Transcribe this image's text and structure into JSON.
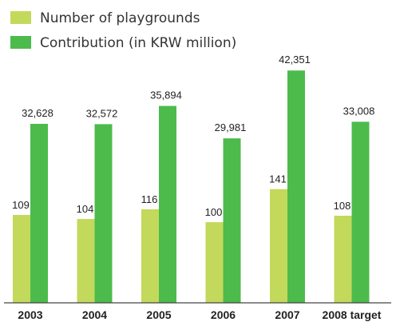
{
  "chart_data": {
    "type": "bar",
    "categories": [
      "2003",
      "2004",
      "2005",
      "2006",
      "2007",
      "2008 target"
    ],
    "series": [
      {
        "name": "Number of playgrounds",
        "values": [
          109,
          104,
          116,
          100,
          141,
          108
        ],
        "labels": [
          "109",
          "104",
          "116",
          "100",
          "141",
          "108"
        ],
        "color": "#c3d95b"
      },
      {
        "name": "Contribution (in KRW million)",
        "values": [
          32628,
          32572,
          35894,
          29981,
          42351,
          33008
        ],
        "labels": [
          "32,628",
          "32,572",
          "35,894",
          "29,981",
          "42,351",
          "33,008"
        ],
        "color": "#4cbb4c"
      }
    ],
    "legend_position": "top-left",
    "grid": false,
    "dual_axis": true
  }
}
